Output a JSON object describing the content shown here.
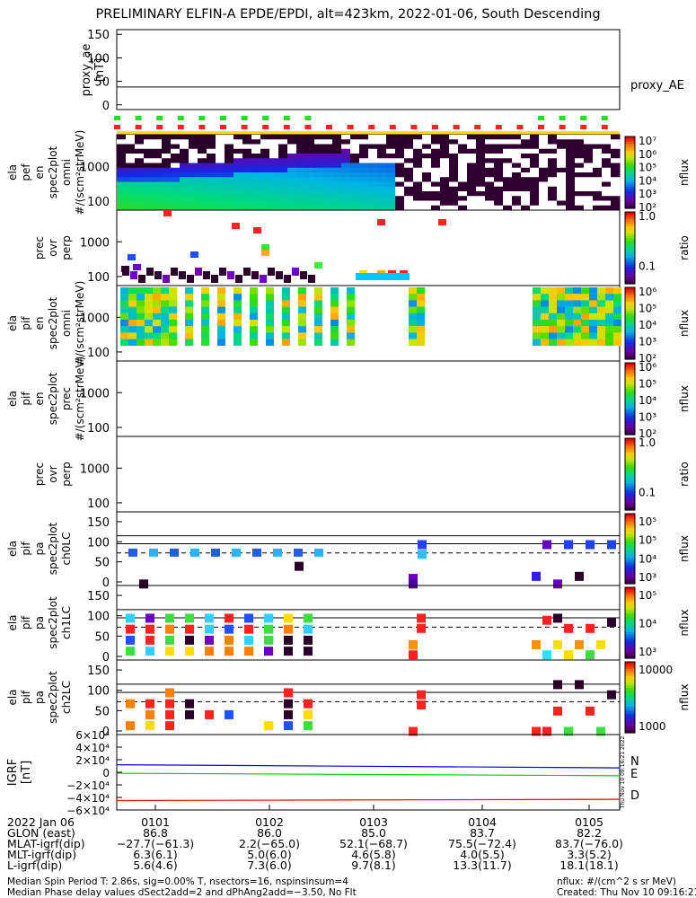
{
  "title": "PRELIMINARY ELFIN-A EPDE/EPDI, alt=423km, 2022-01-06, South Descending",
  "chart_data": [
    {
      "type": "line",
      "panel": "proxy_ae",
      "ylabel": [
        "proxy_ae",
        "[nT]"
      ],
      "yticks": [
        "150",
        "100",
        "50",
        "0"
      ],
      "ylim": [
        -10,
        160
      ],
      "series": [
        {
          "name": "proxy_AE",
          "values": [
            38,
            38
          ]
        }
      ]
    },
    {
      "type": "heatmap",
      "panel": "ela pef en spec2plot omni",
      "ylabel": [
        "ela",
        "pef",
        "en",
        "spec2plot",
        "omni",
        "#/(scm²strMeV)"
      ],
      "yticks": [
        "1000",
        "100"
      ],
      "colorbar": {
        "label": "nflux",
        "ticks": [
          "10⁷",
          "10⁶",
          "10⁵",
          "10⁴",
          "10³",
          "10²"
        ]
      }
    },
    {
      "type": "heatmap",
      "panel": "prec ovr perp (electrons)",
      "ylabel": [
        "prec",
        "ovr",
        "perp"
      ],
      "yticks": [
        "1000",
        "100"
      ],
      "colorbar": {
        "label": "ratio",
        "ticks": [
          "1.0",
          "0.1"
        ]
      }
    },
    {
      "type": "heatmap",
      "panel": "ela pif en spec2plot omni",
      "ylabel": [
        "ela",
        "pif",
        "en",
        "spec2plot",
        "omni",
        "#/(scm²strMeV)"
      ],
      "yticks": [
        "1000",
        "100"
      ],
      "colorbar": {
        "label": "nflux",
        "ticks": [
          "10⁶",
          "10⁵",
          "10⁴",
          "10³",
          "10²"
        ]
      }
    },
    {
      "type": "heatmap",
      "panel": "ela pif en spec2plot prec",
      "ylabel": [
        "ela",
        "pif",
        "en",
        "spec2plot",
        "prec",
        "#/(scm²strMeV)"
      ],
      "yticks": [
        "1000",
        "100"
      ],
      "colorbar": {
        "label": "nflux",
        "ticks": [
          "10⁶",
          "10⁵",
          "10⁴",
          "10³",
          "10²"
        ]
      }
    },
    {
      "type": "heatmap",
      "panel": "prec ovr perp (ions)",
      "ylabel": [
        "prec",
        "ovr",
        "perp"
      ],
      "yticks": [
        "1000",
        "100"
      ],
      "colorbar": {
        "label": "ratio",
        "ticks": [
          "1.0",
          "0.1"
        ]
      }
    },
    {
      "type": "heatmap",
      "panel": "ch0LC",
      "ylabel": [
        "ela",
        "pif",
        "pa",
        "spec2plot",
        "ch0LC"
      ],
      "yticks": [
        "150",
        "100",
        "50",
        "0"
      ],
      "colorbar": {
        "label": "nflux",
        "ticks": [
          "10⁵",
          "10⁵",
          "10⁴",
          "10³"
        ]
      }
    },
    {
      "type": "heatmap",
      "panel": "ch1LC",
      "ylabel": [
        "ela",
        "pif",
        "pa",
        "spec2plot",
        "ch1LC"
      ],
      "yticks": [
        "150",
        "100",
        "50",
        "0"
      ],
      "colorbar": {
        "label": "nflux",
        "ticks": [
          "10⁵",
          "10⁴",
          "10³"
        ]
      }
    },
    {
      "type": "heatmap",
      "panel": "ch2LC",
      "ylabel": [
        "ela",
        "pif",
        "pa",
        "spec2plot",
        "ch2LC"
      ],
      "yticks": [
        "150",
        "100",
        "50",
        "0"
      ],
      "colorbar": {
        "label": "nflux",
        "ticks": [
          "10000",
          "1000"
        ]
      }
    },
    {
      "type": "line",
      "panel": "IGRF",
      "ylabel": [
        "IGRF",
        "[nT]"
      ],
      "yticks": [
        "6×10⁴",
        "4×10⁴",
        "2×10⁴",
        "0",
        "−2×10⁴",
        "−4×10⁴",
        "−6×10⁴"
      ],
      "ylim": [
        -60000,
        60000
      ],
      "series": [
        {
          "name": "N",
          "color": "#0000ff",
          "values": [
            12000,
            7000
          ]
        },
        {
          "name": "E",
          "color": "#00cc00",
          "values": [
            -1500,
            -5500
          ]
        },
        {
          "name": "D",
          "color": "#ff0000",
          "values": [
            -45000,
            -43000
          ]
        }
      ]
    }
  ],
  "x_axis": {
    "row_labels": [
      "2022 Jan 06",
      "GLON (east)",
      "MLAT-igrf(dip)",
      "MLT-igrf(dip)",
      "L-igrf(dip)"
    ],
    "columns": [
      {
        "tick": "0101",
        "glon": "86.8",
        "mlat": "−27.7(−61.3)",
        "mlt": "6.3(6.1)",
        "l": "5.6(4.6)"
      },
      {
        "tick": "0102",
        "glon": "86.0",
        "mlat": "2.2(−65.0)",
        "mlt": "5.0(6.0)",
        "l": "7.3(6.0)"
      },
      {
        "tick": "0103",
        "glon": "85.0",
        "mlat": "52.1(−68.7)",
        "mlt": "4.6(5.8)",
        "l": "9.7(8.1)"
      },
      {
        "tick": "0104",
        "glon": "83.7",
        "mlat": "75.5(−72.4)",
        "mlt": "4.0(5.5)",
        "l": "13.3(11.7)"
      },
      {
        "tick": "0105",
        "glon": "82.2",
        "mlat": "83.7(−76.0)",
        "mlt": "3.3(5.2)",
        "l": "18.1(18.1)"
      }
    ]
  },
  "footer": {
    "line1": "Median Spin Period T: 2.86s, sig=0.00% T, nsectors=16, nspinsinsum=4",
    "line2": "Median Phase delay values dSect2add=2 and dPhAng2add=−3.50, No Flt",
    "units": "nflux: #/(cm^2 s sr MeV)",
    "created": "Created: Thu Nov 10 09:16:21 2022",
    "side_stamp": "Thu Nov 10 09:16:21 2022"
  }
}
